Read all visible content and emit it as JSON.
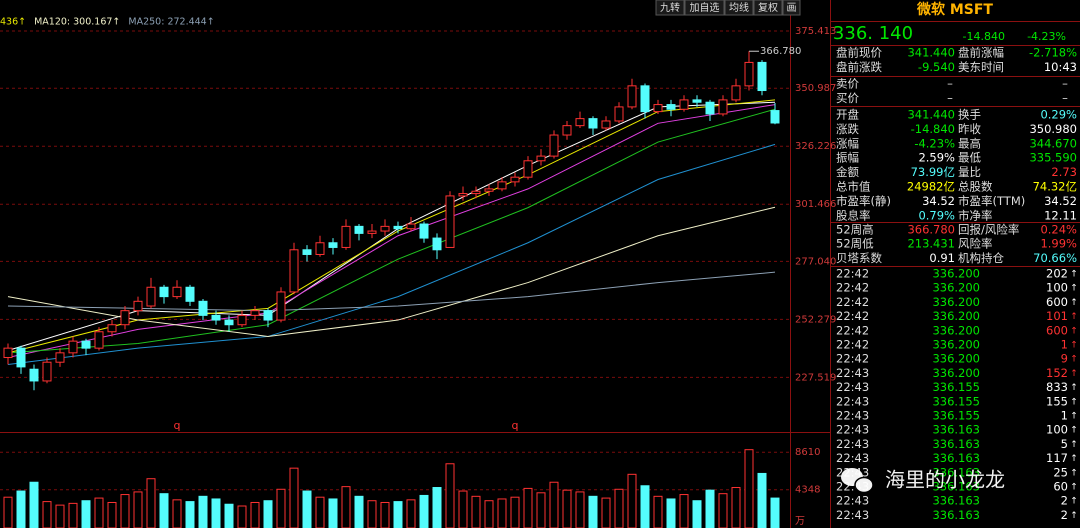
{
  "toolbar": [
    "九转",
    "加自选",
    "均线",
    "复权",
    "画"
  ],
  "chart_data": {
    "type": "candlestick",
    "legend": [
      {
        "text": "436↑",
        "color": "#e8e800"
      },
      {
        "text": "MA120: 300.167↑",
        "color": "#f0f0c8"
      },
      {
        "text": "MA250: 272.444↑",
        "color": "#8ca0b4"
      }
    ],
    "ylim": [
      204.2,
      388.65
    ],
    "yticks": [
      {
        "value": 375.413,
        "label": "375.413"
      },
      {
        "value": 350.987,
        "label": "350.987"
      },
      {
        "value": 326.226,
        "label": "326.226"
      },
      {
        "value": 301.466,
        "label": "301.466"
      },
      {
        "value": 277.04,
        "label": "277.040"
      },
      {
        "value": 252.279,
        "label": "252.279"
      },
      {
        "value": 227.519,
        "label": "227.519"
      }
    ],
    "max_label": {
      "value": 366.78,
      "label": "366.780",
      "index": 57
    },
    "markers": [
      {
        "text": "q",
        "index": 13
      },
      {
        "text": "q",
        "index": 39
      }
    ],
    "up_color": "#ff3232",
    "down_color": "#54fcfc",
    "candles": [
      [
        236,
        242,
        233,
        240
      ],
      [
        240,
        241,
        229,
        232
      ],
      [
        231,
        233,
        222,
        226
      ],
      [
        226,
        236,
        225,
        234
      ],
      [
        234,
        240,
        232,
        238
      ],
      [
        238,
        245,
        236,
        243
      ],
      [
        243,
        244,
        237,
        240
      ],
      [
        240,
        249,
        239,
        247
      ],
      [
        247,
        252,
        245,
        250
      ],
      [
        250,
        258,
        248,
        256
      ],
      [
        256,
        262,
        254,
        260
      ],
      [
        258,
        270,
        257,
        266
      ],
      [
        266,
        267,
        259,
        262
      ],
      [
        262,
        269,
        261,
        266
      ],
      [
        266,
        267,
        258,
        260
      ],
      [
        260,
        261,
        252,
        254
      ],
      [
        254,
        256,
        250,
        252
      ],
      [
        252,
        254,
        247,
        250
      ],
      [
        250,
        256,
        249,
        254
      ],
      [
        254,
        258,
        252,
        256
      ],
      [
        256,
        257,
        249,
        252
      ],
      [
        252,
        266,
        251,
        264
      ],
      [
        264,
        285,
        263,
        282
      ],
      [
        282,
        284,
        277,
        280
      ],
      [
        280,
        288,
        279,
        285
      ],
      [
        285,
        287,
        280,
        283
      ],
      [
        283,
        295,
        282,
        292
      ],
      [
        292,
        293,
        286,
        289
      ],
      [
        289,
        293,
        287,
        290
      ],
      [
        290,
        295,
        288,
        292
      ],
      [
        292,
        294,
        289,
        291
      ],
      [
        291,
        296,
        290,
        293
      ],
      [
        293,
        294,
        285,
        287
      ],
      [
        287,
        289,
        278,
        282
      ],
      [
        283,
        307,
        283,
        305
      ],
      [
        305,
        309,
        303,
        306
      ],
      [
        306,
        309,
        304,
        307
      ],
      [
        307,
        310,
        305,
        308
      ],
      [
        308,
        313,
        307,
        311
      ],
      [
        311,
        315,
        309,
        313
      ],
      [
        313,
        322,
        312,
        320
      ],
      [
        320,
        325,
        318,
        322
      ],
      [
        322,
        333,
        321,
        331
      ],
      [
        331,
        337,
        329,
        335
      ],
      [
        335,
        341,
        334,
        338
      ],
      [
        338,
        339,
        331,
        334
      ],
      [
        334,
        339,
        333,
        337
      ],
      [
        337,
        345,
        336,
        343
      ],
      [
        343,
        355,
        342,
        352
      ],
      [
        352,
        353,
        338,
        341
      ],
      [
        341,
        346,
        340,
        344
      ],
      [
        344,
        346,
        339,
        342
      ],
      [
        342,
        348,
        341,
        346
      ],
      [
        346,
        348,
        343,
        345
      ],
      [
        345,
        346,
        337,
        340
      ],
      [
        340,
        348,
        339,
        346
      ],
      [
        346,
        355,
        345,
        352
      ],
      [
        352,
        366.78,
        350,
        362
      ],
      [
        362,
        363,
        348,
        350
      ],
      [
        341.44,
        344.67,
        335.59,
        336.14
      ]
    ],
    "ma_x": [
      0,
      10,
      20,
      30,
      40,
      50,
      59
    ],
    "ma_lines": [
      {
        "color": "#ffffff",
        "values": [
          239,
          256,
          254,
          291,
          318,
          343,
          345
        ]
      },
      {
        "color": "#e8e800",
        "values": [
          238,
          252,
          257,
          290,
          314,
          341,
          346
        ]
      },
      {
        "color": "#e040e0",
        "values": [
          236,
          248,
          255,
          288,
          308,
          336,
          344
        ]
      },
      {
        "color": "#20c020",
        "values": [
          238,
          242,
          250,
          278,
          300,
          328,
          342
        ]
      },
      {
        "color": "#2090d0",
        "values": [
          233,
          240,
          245,
          262,
          285,
          312,
          327
        ]
      },
      {
        "color": "#f0f0c8",
        "values": [
          262,
          252,
          245,
          252,
          268,
          288,
          300.167
        ]
      },
      {
        "color": "#8ca0b4",
        "values": [
          258,
          257,
          256,
          258,
          262,
          268,
          272.444
        ]
      }
    ],
    "volumes": [
      3500,
      4200,
      5200,
      3000,
      2600,
      2800,
      3100,
      3400,
      2900,
      3800,
      4100,
      5600,
      3900,
      3200,
      3000,
      3600,
      3300,
      2700,
      2500,
      2900,
      3100,
      4400,
      6800,
      4200,
      3500,
      3300,
      4700,
      3600,
      3100,
      2900,
      3000,
      3200,
      3700,
      4600,
      7300,
      4200,
      3600,
      3100,
      3300,
      3500,
      4500,
      4000,
      5200,
      4300,
      4100,
      3600,
      3400,
      4400,
      6100,
      4800,
      3600,
      3300,
      3800,
      3100,
      4300,
      3900,
      4600,
      8900,
      6200,
      3400
    ],
    "vol_ylim": [
      0,
      10000
    ],
    "vol_yticks": [
      8610,
      4348
    ],
    "vol_unit": "万"
  },
  "panel": {
    "title": "微软 MSFT",
    "price": "336. 140",
    "change": "-14.840",
    "change_pct": "-4.23%",
    "pre": [
      {
        "l1": "盘前现价",
        "v1": "341.440",
        "c1": "#00e600",
        "l2": "盘前涨幅",
        "v2": "-2.718%",
        "c2": "#00e600"
      },
      {
        "l1": "盘前涨跌",
        "v1": "-9.540",
        "c1": "#00e600",
        "l2": "美东时间",
        "v2": "10:43",
        "c2": "#ffffff"
      }
    ],
    "quotes": [
      {
        "label": "卖价",
        "v1": "–",
        "v2": "–"
      },
      {
        "label": "买价",
        "v1": "–",
        "v2": "–"
      }
    ],
    "stats": [
      {
        "l1": "开盘",
        "v1": "341.440",
        "c1": "#00e600",
        "l2": "换手",
        "v2": "0.29%",
        "c2": "#54fcfc"
      },
      {
        "l1": "涨跌",
        "v1": "-14.840",
        "c1": "#00e600",
        "l2": "昨收",
        "v2": "350.980",
        "c2": "#ffffff"
      },
      {
        "l1": "涨幅",
        "v1": "-4.23%",
        "c1": "#00e600",
        "l2": "最高",
        "v2": "344.670",
        "c2": "#00e600"
      },
      {
        "l1": "振幅",
        "v1": "2.59%",
        "c1": "#ffffff",
        "l2": "最低",
        "v2": "335.590",
        "c2": "#00e600"
      },
      {
        "l1": "金额",
        "v1": "73.99亿",
        "c1": "#54fcfc",
        "l2": "量比",
        "v2": "2.73",
        "c2": "#ff3232"
      },
      {
        "l1": "总市值",
        "v1": "24982亿",
        "c1": "#ffff00",
        "l2": "总股数",
        "v2": "74.32亿",
        "c2": "#ffff00"
      },
      {
        "l1": "市盈率(静)",
        "v1": "34.52",
        "c1": "#ffffff",
        "l2": "市盈率(TTM)",
        "v2": "34.52",
        "c2": "#ffffff"
      },
      {
        "l1": "股息率",
        "v1": "0.79%",
        "c1": "#54fcfc",
        "l2": "市净率",
        "v2": "12.11",
        "c2": "#ffffff"
      }
    ],
    "stats52": [
      {
        "l1": "52周高",
        "v1": "366.780",
        "c1": "#ff3232",
        "l2": "回报/风险率",
        "v2": "0.24%",
        "c2": "#ff3232"
      },
      {
        "l1": "52周低",
        "v1": "213.431",
        "c1": "#00e600",
        "l2": "风险率",
        "v2": "1.99%",
        "c2": "#ff3232"
      },
      {
        "l1": "贝塔系数",
        "v1": "0.91",
        "c1": "#ffffff",
        "l2": "机构持仓",
        "v2": "70.66%",
        "c2": "#54fcfc"
      }
    ],
    "trades": [
      {
        "time": "22:42",
        "price": "336.200",
        "vol": "202",
        "dir": "↑",
        "color": "#ffffff"
      },
      {
        "time": "22:42",
        "price": "336.200",
        "vol": "100",
        "dir": "↑",
        "color": "#ffffff"
      },
      {
        "time": "22:42",
        "price": "336.200",
        "vol": "600",
        "dir": "↑",
        "color": "#ffffff"
      },
      {
        "time": "22:42",
        "price": "336.200",
        "vol": "101",
        "dir": "↑",
        "color": "#ff3232"
      },
      {
        "time": "22:42",
        "price": "336.200",
        "vol": "600",
        "dir": "↑",
        "color": "#ff3232"
      },
      {
        "time": "22:42",
        "price": "336.200",
        "vol": "1",
        "dir": "↑",
        "color": "#ff3232"
      },
      {
        "time": "22:42",
        "price": "336.200",
        "vol": "9",
        "dir": "↑",
        "color": "#ff3232"
      },
      {
        "time": "22:43",
        "price": "336.200",
        "vol": "152",
        "dir": "↑",
        "color": "#ff3232"
      },
      {
        "time": "22:43",
        "price": "336.155",
        "vol": "833",
        "dir": "↑",
        "color": "#ffffff"
      },
      {
        "time": "22:43",
        "price": "336.155",
        "vol": "155",
        "dir": "↑",
        "color": "#ffffff"
      },
      {
        "time": "22:43",
        "price": "336.155",
        "vol": "1",
        "dir": "↑",
        "color": "#ffffff"
      },
      {
        "time": "22:43",
        "price": "336.163",
        "vol": "100",
        "dir": "↑",
        "color": "#ffffff"
      },
      {
        "time": "22:43",
        "price": "336.163",
        "vol": "5",
        "dir": "↑",
        "color": "#ffffff"
      },
      {
        "time": "22:43",
        "price": "336.163",
        "vol": "117",
        "dir": "↑",
        "color": "#ffffff"
      },
      {
        "time": "22:43",
        "price": "336.163",
        "vol": "25",
        "dir": "↑",
        "color": "#ffffff"
      },
      {
        "time": "22:43",
        "price": "336.163",
        "vol": "60",
        "dir": "↑",
        "color": "#ffffff"
      },
      {
        "time": "22:43",
        "price": "336.163",
        "vol": "2",
        "dir": "↑",
        "color": "#ffffff"
      },
      {
        "time": "22:43",
        "price": "336.163",
        "vol": "2",
        "dir": "↑",
        "color": "#ffffff"
      }
    ]
  },
  "watermark": "海里的小龙龙"
}
